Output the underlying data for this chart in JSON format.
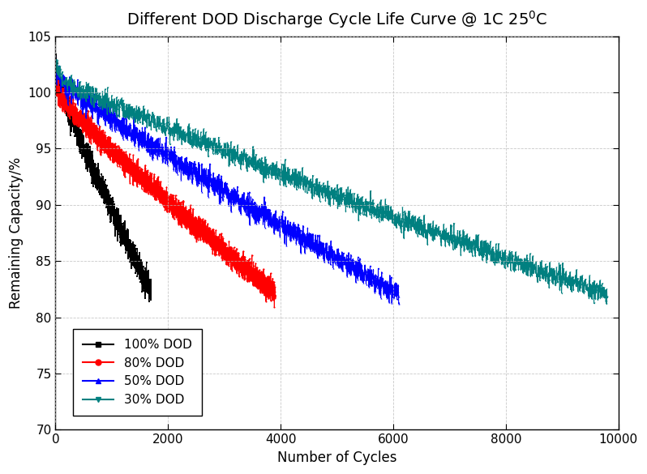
{
  "title_parts": [
    "Different DOD Discharge Cycle Life Curve @ 1C 25",
    "0",
    "C"
  ],
  "xlabel": "Number of Cycles",
  "ylabel": "Remaining Capacity/%",
  "xlim": [
    0,
    10000
  ],
  "ylim": [
    70,
    105
  ],
  "yticks": [
    70,
    75,
    80,
    85,
    90,
    95,
    100,
    105
  ],
  "xticks": [
    0,
    2000,
    4000,
    6000,
    8000,
    10000
  ],
  "series": [
    {
      "label": "100% DOD",
      "color": "#000000",
      "marker": "s",
      "x_end": 1700,
      "y_start": 101.5,
      "y_end": 82.2,
      "noise": 0.55,
      "n_points": 1700,
      "bump_scale": 1.2,
      "bump_decay": 12
    },
    {
      "label": "80% DOD",
      "color": "#ff0000",
      "marker": "o",
      "x_end": 3900,
      "y_start": 100.2,
      "y_end": 82.2,
      "noise": 0.45,
      "n_points": 3900,
      "bump_scale": 0.8,
      "bump_decay": 10
    },
    {
      "label": "50% DOD",
      "color": "#0000ff",
      "marker": "^",
      "x_end": 6100,
      "y_start": 101.5,
      "y_end": 82.1,
      "noise": 0.5,
      "n_points": 6100,
      "bump_scale": 1.0,
      "bump_decay": 10
    },
    {
      "label": "30% DOD",
      "color": "#008080",
      "marker": "v",
      "x_end": 9800,
      "y_start": 101.5,
      "y_end": 82.0,
      "noise": 0.45,
      "n_points": 9800,
      "bump_scale": 1.0,
      "bump_decay": 10
    }
  ],
  "background_color": "#ffffff",
  "grid_color": "#bbbbbb",
  "title_fontsize": 14,
  "label_fontsize": 12,
  "tick_fontsize": 11,
  "legend_fontsize": 11
}
